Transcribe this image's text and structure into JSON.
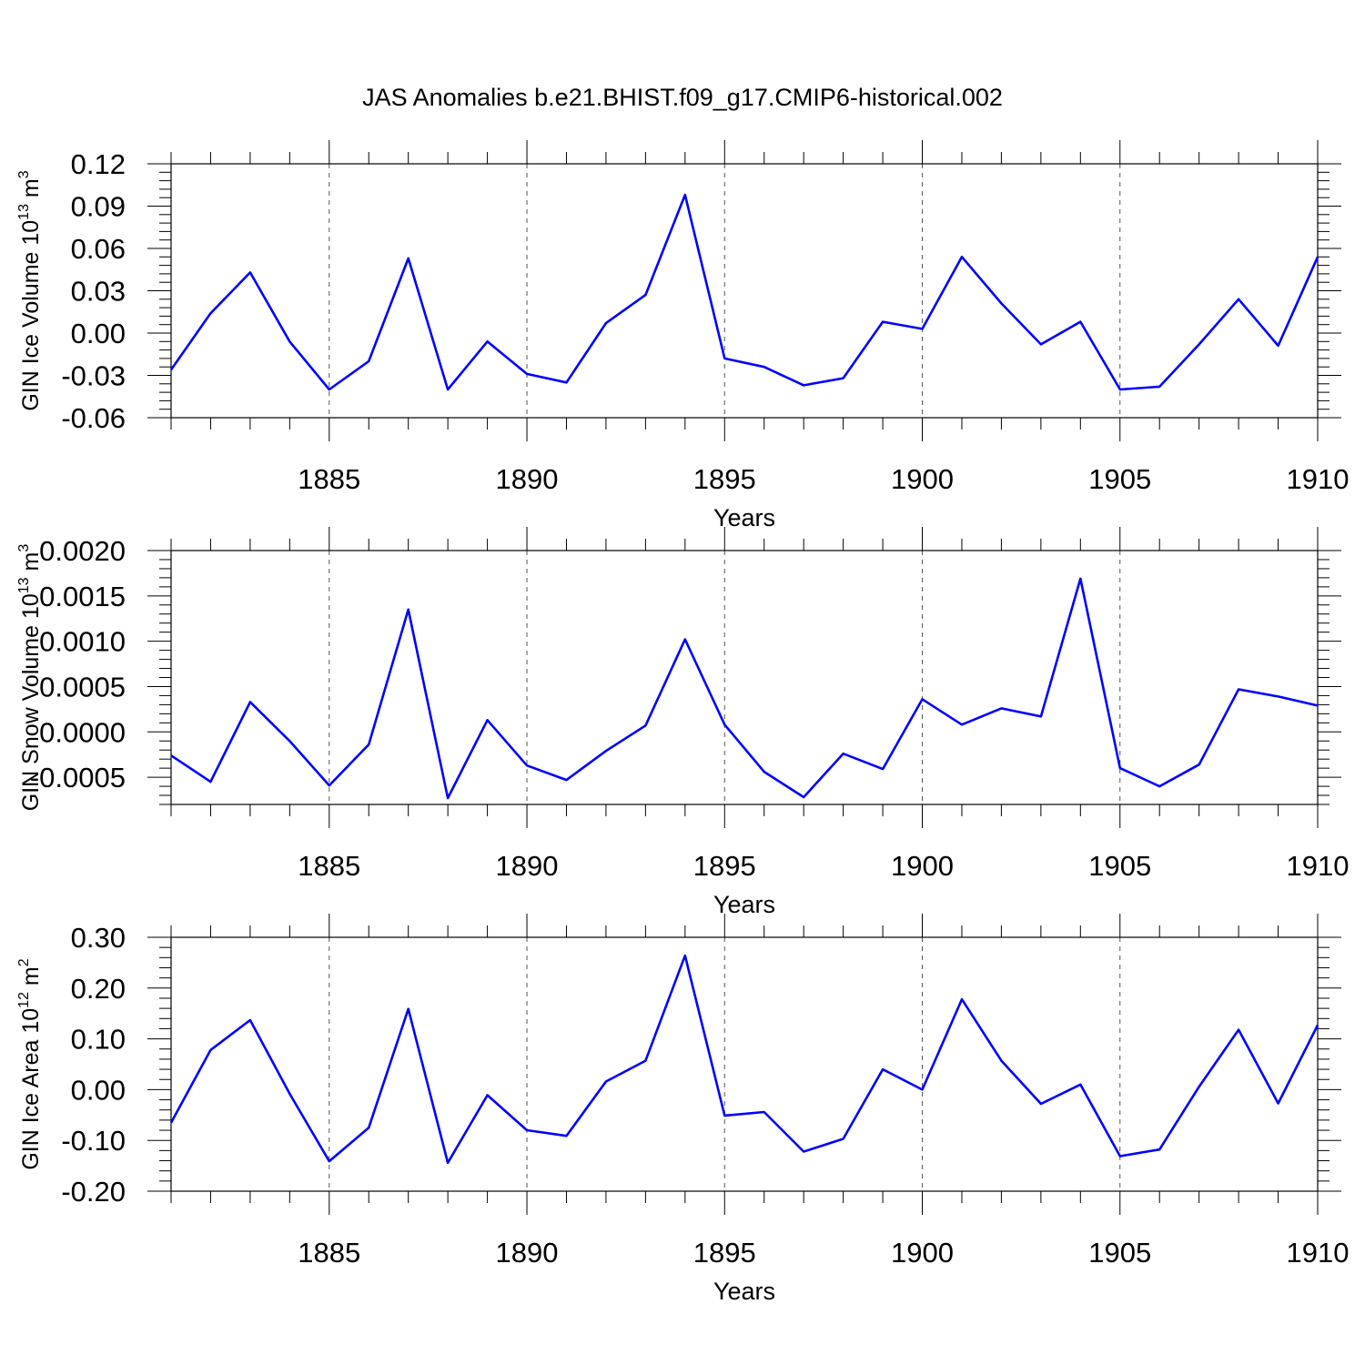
{
  "chart_data": {
    "title": "JAS Anomalies b.e21.BHIST.f09_g17.CMIP6-historical.002",
    "type": "line",
    "series_color": "#0000ff",
    "x": [
      1881,
      1882,
      1883,
      1884,
      1885,
      1886,
      1887,
      1888,
      1889,
      1890,
      1891,
      1892,
      1893,
      1894,
      1895,
      1896,
      1897,
      1898,
      1899,
      1900,
      1901,
      1902,
      1903,
      1904,
      1905,
      1906,
      1907,
      1908,
      1909,
      1910
    ],
    "xlim": [
      1881,
      1910
    ],
    "x_ticks": [
      "1885",
      "1890",
      "1895",
      "1900",
      "1905",
      "1910"
    ],
    "panels": [
      {
        "ylabel_main": "GIN Ice Volume 10",
        "ylabel_exp": "13",
        "ylabel_unit": " m",
        "ylabel_unit_exp": "3",
        "xlabel": "Years",
        "ylim": [
          -0.06,
          0.12
        ],
        "y_ticks": [
          "0.12",
          "0.09",
          "0.06",
          "0.03",
          "0.00",
          "-0.03",
          "-0.06"
        ],
        "values": [
          -0.026,
          0.014,
          0.043,
          -0.006,
          -0.04,
          -0.02,
          0.053,
          -0.04,
          -0.006,
          -0.029,
          -0.035,
          0.007,
          0.027,
          0.098,
          -0.018,
          -0.024,
          -0.037,
          -0.032,
          0.008,
          0.003,
          0.054,
          0.021,
          -0.008,
          0.008,
          -0.04,
          -0.038,
          -0.008,
          0.024,
          -0.009,
          0.054
        ]
      },
      {
        "ylabel_main": "GIN Snow Volume 10",
        "ylabel_exp": "13",
        "ylabel_unit": " m",
        "ylabel_unit_exp": "3",
        "xlabel": "Years",
        "ylim": [
          -0.0008,
          0.002
        ],
        "y_ticks": [
          "0.0020",
          "0.0015",
          "0.0010",
          "0.0005",
          "0.0000",
          "-0.0005"
        ],
        "values": [
          -0.00026,
          -0.00055,
          0.00033,
          -0.0001,
          -0.00059,
          -0.00014,
          0.00135,
          -0.00073,
          0.00013,
          -0.00037,
          -0.00053,
          -0.00021,
          7e-05,
          0.00102,
          8e-05,
          -0.00044,
          -0.00072,
          -0.00024,
          -0.00041,
          0.00036,
          8e-05,
          0.00026,
          0.00017,
          0.00169,
          -0.0004,
          -0.0006,
          -0.00036,
          0.00047,
          0.00039,
          0.00029
        ]
      },
      {
        "ylabel_main": "GIN Ice Area 10",
        "ylabel_exp": "12",
        "ylabel_unit": " m",
        "ylabel_unit_exp": "2",
        "xlabel": "Years",
        "ylim": [
          -0.2,
          0.3
        ],
        "y_ticks": [
          "0.30",
          "0.20",
          "0.10",
          "0.00",
          "-0.10",
          "-0.20"
        ],
        "values": [
          -0.065,
          0.078,
          0.137,
          -0.008,
          -0.141,
          -0.075,
          0.159,
          -0.144,
          -0.011,
          -0.08,
          -0.091,
          0.016,
          0.057,
          0.264,
          -0.051,
          -0.044,
          -0.122,
          -0.097,
          0.04,
          0.0,
          0.178,
          0.057,
          -0.028,
          0.01,
          -0.131,
          -0.118,
          0.006,
          0.118,
          -0.027,
          0.127
        ]
      }
    ]
  }
}
